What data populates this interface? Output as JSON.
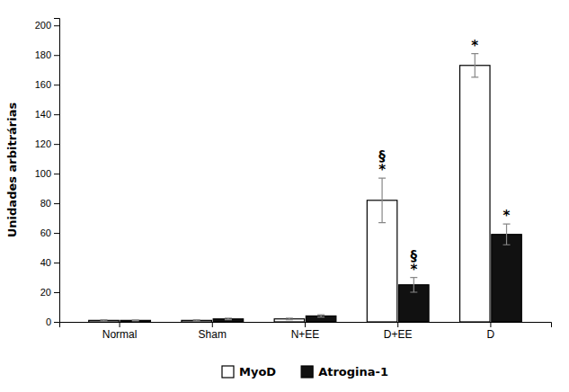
{
  "chart_data": {
    "type": "bar",
    "categories": [
      "Normal",
      "Sham",
      "N+EE",
      "D+EE",
      "D"
    ],
    "series": [
      {
        "name": "MyoD",
        "color": "#ffffff",
        "values": [
          1.0,
          1.0,
          2.0,
          82.0,
          173.0
        ],
        "errors": [
          0.5,
          0.5,
          0.5,
          15.0,
          8.0
        ]
      },
      {
        "name": "Atrogina-1",
        "color": "#111111",
        "values": [
          1.0,
          2.0,
          4.0,
          25.0,
          59.0
        ],
        "errors": [
          0.3,
          0.5,
          0.8,
          5.0,
          7.0
        ]
      }
    ],
    "ylabel": "Unidades arbitrárias",
    "ylim": [
      0,
      205
    ],
    "yticks": [
      0,
      20,
      40,
      60,
      80,
      100,
      120,
      140,
      160,
      180,
      200
    ],
    "annotations": [
      {
        "text": "*",
        "series": "MyoD",
        "category": "D+EE"
      },
      {
        "text": "§",
        "series": "MyoD",
        "category": "D+EE"
      },
      {
        "text": "*",
        "series": "Atrogina-1",
        "category": "D+EE"
      },
      {
        "text": "§",
        "series": "Atrogina-1",
        "category": "D+EE"
      },
      {
        "text": "*",
        "series": "MyoD",
        "category": "D"
      },
      {
        "text": "*",
        "series": "Atrogina-1",
        "category": "D"
      }
    ],
    "grid": false,
    "legend": "bottom"
  }
}
